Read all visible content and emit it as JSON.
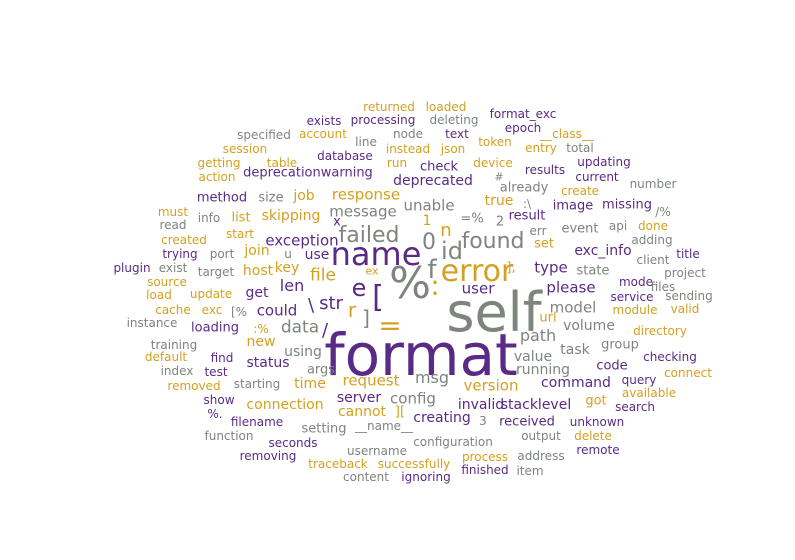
{
  "palette": {
    "purple": "#5b2a86",
    "gold": "#d4a020",
    "gray": "#7d857d"
  },
  "words": [
    {
      "text": "format",
      "color": "purple",
      "weight": 100
    },
    {
      "text": "self",
      "color": "gray",
      "weight": 90
    },
    {
      "text": "%",
      "color": "gray",
      "weight": 70
    },
    {
      "text": "name",
      "color": "purple",
      "weight": 52
    },
    {
      "text": "error",
      "color": "gold",
      "weight": 45
    },
    {
      "text": "[",
      "color": "purple",
      "weight": 45
    },
    {
      "text": "=",
      "color": "gold",
      "weight": 45
    },
    {
      "text": ":",
      "color": "gold",
      "weight": 42
    },
    {
      "text": "f",
      "color": "gray",
      "weight": 42
    },
    {
      "text": "e",
      "color": "purple",
      "weight": 40
    },
    {
      "text": "id",
      "color": "gray",
      "weight": 38
    },
    {
      "text": "found",
      "color": "gray",
      "weight": 35
    },
    {
      "text": "failed",
      "color": "gray",
      "weight": 35
    },
    {
      "text": "0",
      "color": "gray",
      "weight": 33
    },
    {
      "text": "r",
      "color": "gold",
      "weight": 33
    },
    {
      "text": "]",
      "color": "gray",
      "weight": 33
    },
    {
      "text": "n",
      "color": "gold",
      "weight": 30
    },
    {
      "text": "str",
      "color": "purple",
      "weight": 30
    },
    {
      "text": "\\",
      "color": "purple",
      "weight": 30
    },
    {
      "text": "/",
      "color": "purple",
      "weight": 30
    },
    {
      "text": "data",
      "color": "gray",
      "weight": 27
    },
    {
      "text": "file",
      "color": "gold",
      "weight": 27
    },
    {
      "text": "msg",
      "color": "gray",
      "weight": 26
    },
    {
      "text": "exception",
      "color": "purple",
      "weight": 25
    },
    {
      "text": "response",
      "color": "gold",
      "weight": 25
    },
    {
      "text": "path",
      "color": "gray",
      "weight": 25
    },
    {
      "text": "len",
      "color": "purple",
      "weight": 25
    },
    {
      "text": "message",
      "color": "gray",
      "weight": 24
    },
    {
      "text": "request",
      "color": "gold",
      "weight": 24
    },
    {
      "text": "user",
      "color": "purple",
      "weight": 24
    },
    {
      "text": "version",
      "color": "gold",
      "weight": 23
    },
    {
      "text": "please",
      "color": "purple",
      "weight": 23
    },
    {
      "text": "config",
      "color": "gray",
      "weight": 23
    },
    {
      "text": "unable",
      "color": "gray",
      "weight": 23
    },
    {
      "text": "type",
      "color": "purple",
      "weight": 22
    },
    {
      "text": "could",
      "color": "purple",
      "weight": 22
    },
    {
      "text": "model",
      "color": "gray",
      "weight": 22
    },
    {
      "text": "deprecated",
      "color": "purple",
      "weight": 21
    },
    {
      "text": "volume",
      "color": "gray",
      "weight": 21
    },
    {
      "text": "value",
      "color": "gray",
      "weight": 21
    },
    {
      "text": "using",
      "color": "gray",
      "weight": 21
    },
    {
      "text": "key",
      "color": "gold",
      "weight": 21
    },
    {
      "text": "1",
      "color": "gold",
      "weight": 22
    },
    {
      "text": "=%",
      "color": "gray",
      "weight": 20
    },
    {
      "text": "2",
      "color": "gray",
      "weight": 20
    },
    {
      "text": "true",
      "color": "gold",
      "weight": 20
    },
    {
      "text": "],",
      "color": "gold",
      "weight": 20
    },
    {
      "text": "exc_info",
      "color": "purple",
      "weight": 20
    },
    {
      "text": "connection",
      "color": "gold",
      "weight": 20
    },
    {
      "text": "running",
      "color": "gray",
      "weight": 20
    },
    {
      "text": "command",
      "color": "purple",
      "weight": 20
    },
    {
      "text": "server",
      "color": "purple",
      "weight": 20
    },
    {
      "text": "invalid",
      "color": "purple",
      "weight": 20
    },
    {
      "text": "stacklevel",
      "color": "purple",
      "weight": 20
    },
    {
      "text": "cannot",
      "color": "gold",
      "weight": 19
    },
    {
      "text": "creating",
      "color": "purple",
      "weight": 19
    },
    {
      "text": "job",
      "color": "gold",
      "weight": 18
    },
    {
      "text": "skipping",
      "color": "gold",
      "weight": 18
    },
    {
      "text": "host",
      "color": "gold",
      "weight": 18
    },
    {
      "text": "get",
      "color": "purple",
      "weight": 18
    },
    {
      "text": "url",
      "color": "gold",
      "weight": 18
    },
    {
      "text": "time",
      "color": "gold",
      "weight": 18
    },
    {
      "text": "status",
      "color": "purple",
      "weight": 18
    },
    {
      "text": "x",
      "color": "purple",
      "weight": 18
    },
    {
      "text": "use",
      "color": "purple",
      "weight": 18
    },
    {
      "text": "task",
      "color": "gray",
      "weight": 17
    },
    {
      "text": "set",
      "color": "gold",
      "weight": 17
    },
    {
      "text": "result",
      "color": "purple",
      "weight": 17
    },
    {
      "text": "event",
      "color": "gray",
      "weight": 17
    },
    {
      "text": "join",
      "color": "gold",
      "weight": 17
    },
    {
      "text": "new",
      "color": "gold",
      "weight": 17
    },
    {
      "text": "args",
      "color": "gray",
      "weight": 17
    },
    {
      "text": "state",
      "color": "gray",
      "weight": 16
    },
    {
      "text": "group",
      "color": "gray",
      "weight": 16
    },
    {
      "text": "code",
      "color": "purple",
      "weight": 16
    },
    {
      "text": "got",
      "color": "gold",
      "weight": 16
    },
    {
      "text": "received",
      "color": "purple",
      "weight": 16
    },
    {
      "text": "setting",
      "color": "gray",
      "weight": 16
    },
    {
      "text": "loading",
      "color": "purple",
      "weight": 16
    },
    {
      "text": "image",
      "color": "purple",
      "weight": 16
    },
    {
      "text": "missing",
      "color": "purple",
      "weight": 16
    },
    {
      "text": "list",
      "color": "gold",
      "weight": 16
    },
    {
      "text": "size",
      "color": "gray",
      "weight": 16
    },
    {
      "text": "method",
      "color": "purple",
      "weight": 16
    },
    {
      "text": "check",
      "color": "purple",
      "weight": 16
    },
    {
      "text": "already",
      "color": "gray",
      "weight": 16
    },
    {
      "text": "deprecationwarning",
      "color": "purple",
      "weight": 16
    },
    {
      "text": "run",
      "color": "gold",
      "weight": 15
    },
    {
      "text": "instead",
      "color": "gold",
      "weight": 15
    },
    {
      "text": "json",
      "color": "gold",
      "weight": 15
    },
    {
      "text": "device",
      "color": "gold",
      "weight": 15
    },
    {
      "text": "token",
      "color": "gold",
      "weight": 15
    },
    {
      "text": "results",
      "color": "purple",
      "weight": 15
    },
    {
      "text": "updating",
      "color": "purple",
      "weight": 15
    },
    {
      "text": "current",
      "color": "purple",
      "weight": 15
    },
    {
      "text": "create",
      "color": "gold",
      "weight": 15
    },
    {
      "text": "database",
      "color": "purple",
      "weight": 15
    },
    {
      "text": "table",
      "color": "gold",
      "weight": 15
    },
    {
      "text": "getting",
      "color": "gold",
      "weight": 15
    },
    {
      "text": "action",
      "color": "gold",
      "weight": 15
    },
    {
      "text": "session",
      "color": "gold",
      "weight": 15
    },
    {
      "text": "account",
      "color": "gold",
      "weight": 15
    },
    {
      "text": "specified",
      "color": "gray",
      "weight": 15
    },
    {
      "text": "exists",
      "color": "purple",
      "weight": 15
    },
    {
      "text": "processing",
      "color": "purple",
      "weight": 15
    },
    {
      "text": "returned",
      "color": "gold",
      "weight": 15
    },
    {
      "text": "loaded",
      "color": "gold",
      "weight": 15
    },
    {
      "text": "deleting",
      "color": "gray",
      "weight": 15
    },
    {
      "text": "format_exc",
      "color": "purple",
      "weight": 15
    },
    {
      "text": "epoch",
      "color": "purple",
      "weight": 15
    },
    {
      "text": "text",
      "color": "purple",
      "weight": 15
    },
    {
      "text": "__class__",
      "color": "gold",
      "weight": 15
    },
    {
      "text": "entry",
      "color": "gold",
      "weight": 15
    },
    {
      "text": "total",
      "color": "gray",
      "weight": 15
    },
    {
      "text": "node",
      "color": "gray",
      "weight": 15
    },
    {
      "text": "line",
      "color": "gray",
      "weight": 15
    },
    {
      "text": "number",
      "color": "gray",
      "weight": 15
    },
    {
      "text": "/%",
      "color": "gray",
      "weight": 15
    },
    {
      "text": "adding",
      "color": "gray",
      "weight": 15
    },
    {
      "text": "api",
      "color": "gray",
      "weight": 15
    },
    {
      "text": "done",
      "color": "gold",
      "weight": 15
    },
    {
      "text": "title",
      "color": "purple",
      "weight": 15
    },
    {
      "text": "client",
      "color": "gray",
      "weight": 15
    },
    {
      "text": "project",
      "color": "gray",
      "weight": 15
    },
    {
      "text": "mode",
      "color": "purple",
      "weight": 15
    },
    {
      "text": "files",
      "color": "gray",
      "weight": 15
    },
    {
      "text": "sending",
      "color": "gray",
      "weight": 15
    },
    {
      "text": "service",
      "color": "purple",
      "weight": 15
    },
    {
      "text": "valid",
      "color": "gold",
      "weight": 15
    },
    {
      "text": "module",
      "color": "gold",
      "weight": 15
    },
    {
      "text": "directory",
      "color": "gold",
      "weight": 15
    },
    {
      "text": "checking",
      "color": "purple",
      "weight": 15
    },
    {
      "text": "connect",
      "color": "gold",
      "weight": 15
    },
    {
      "text": "query",
      "color": "purple",
      "weight": 15
    },
    {
      "text": "available",
      "color": "gold",
      "weight": 15
    },
    {
      "text": "search",
      "color": "purple",
      "weight": 15
    },
    {
      "text": "unknown",
      "color": "purple",
      "weight": 15
    },
    {
      "text": "delete",
      "color": "gold",
      "weight": 15
    },
    {
      "text": "remote",
      "color": "purple",
      "weight": 15
    },
    {
      "text": "output",
      "color": "gray",
      "weight": 15
    },
    {
      "text": "address",
      "color": "gray",
      "weight": 15
    },
    {
      "text": "item",
      "color": "gray",
      "weight": 15
    },
    {
      "text": "process",
      "color": "gold",
      "weight": 15
    },
    {
      "text": "finished",
      "color": "purple",
      "weight": 15
    },
    {
      "text": "successfully",
      "color": "gold",
      "weight": 15
    },
    {
      "text": "ignoring",
      "color": "purple",
      "weight": 15
    },
    {
      "text": "traceback",
      "color": "gold",
      "weight": 15
    },
    {
      "text": "content",
      "color": "gray",
      "weight": 15
    },
    {
      "text": "username",
      "color": "gray",
      "weight": 15
    },
    {
      "text": "configuration",
      "color": "gray",
      "weight": 15
    },
    {
      "text": "__name__",
      "color": "gray",
      "weight": 15
    },
    {
      "text": "3",
      "color": "gray",
      "weight": 15
    },
    {
      "text": "removing",
      "color": "purple",
      "weight": 15
    },
    {
      "text": "seconds",
      "color": "purple",
      "weight": 15
    },
    {
      "text": "function",
      "color": "gray",
      "weight": 15
    },
    {
      "text": "filename",
      "color": "purple",
      "weight": 15
    },
    {
      "text": "%.",
      "color": "purple",
      "weight": 15
    },
    {
      "text": "show",
      "color": "purple",
      "weight": 15
    },
    {
      "text": "removed",
      "color": "gold",
      "weight": 15
    },
    {
      "text": "starting",
      "color": "gray",
      "weight": 15
    },
    {
      "text": "test",
      "color": "purple",
      "weight": 15
    },
    {
      "text": "index",
      "color": "gray",
      "weight": 15
    },
    {
      "text": "find",
      "color": "purple",
      "weight": 15
    },
    {
      "text": "default",
      "color": "gold",
      "weight": 15
    },
    {
      "text": "training",
      "color": "gray",
      "weight": 15
    },
    {
      "text": ":%",
      "color": "gold",
      "weight": 15
    },
    {
      "text": "instance",
      "color": "gray",
      "weight": 15
    },
    {
      "text": "cache",
      "color": "gold",
      "weight": 15
    },
    {
      "text": "exc",
      "color": "gold",
      "weight": 15
    },
    {
      "text": "[%",
      "color": "gray",
      "weight": 15
    },
    {
      "text": "load",
      "color": "gold",
      "weight": 15
    },
    {
      "text": "update",
      "color": "gold",
      "weight": 15
    },
    {
      "text": "source",
      "color": "gold",
      "weight": 15
    },
    {
      "text": "target",
      "color": "gray",
      "weight": 15
    },
    {
      "text": "plugin",
      "color": "purple",
      "weight": 15
    },
    {
      "text": "exist",
      "color": "gray",
      "weight": 15
    },
    {
      "text": "trying",
      "color": "purple",
      "weight": 15
    },
    {
      "text": "port",
      "color": "gray",
      "weight": 15
    },
    {
      "text": "u",
      "color": "gray",
      "weight": 15
    },
    {
      "text": "created",
      "color": "gold",
      "weight": 15
    },
    {
      "text": "start",
      "color": "gold",
      "weight": 15
    },
    {
      "text": "read",
      "color": "gray",
      "weight": 15
    },
    {
      "text": "must",
      "color": "gold",
      "weight": 15
    },
    {
      "text": "info",
      "color": "gray",
      "weight": 15
    },
    {
      "text": "ex",
      "color": "gold",
      "weight": 15
    },
    {
      "text": "err",
      "color": "gray",
      "weight": 15
    },
    {
      "text": ":\\",
      "color": "gray",
      "weight": 15
    },
    {
      "text": "#",
      "color": "gray",
      "weight": 15
    },
    {
      "text": "][",
      "color": "gold",
      "weight": 15
    }
  ]
}
